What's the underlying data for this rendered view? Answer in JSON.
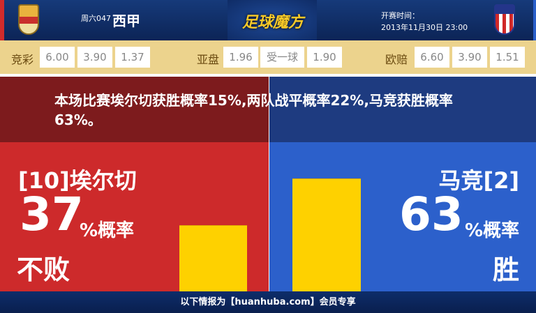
{
  "header": {
    "weekday_code": "周六047",
    "league": "西甲",
    "brand": "足球魔方",
    "kickoff_label": "开赛时间：",
    "kickoff_time": "2013年11月30日 23:00",
    "home_logo": "elche-crest",
    "away_logo": "atletico-madrid-crest"
  },
  "odds": {
    "jingcai": {
      "label": "竞彩",
      "values": [
        "6.00",
        "3.90",
        "1.37"
      ]
    },
    "yapan": {
      "label": "亚盘",
      "values": [
        "1.96",
        "受一球",
        "1.90"
      ]
    },
    "ouzhi": {
      "label": "欧赔",
      "values": [
        "6.60",
        "3.90",
        "1.51"
      ]
    }
  },
  "message": "本场比赛埃尔切获胜概率15%,两队战平概率22%,马竞获胜概率63%。",
  "home": {
    "team": "[10]埃尔切",
    "percent": 37,
    "percent_text": "37",
    "unit": "%概率",
    "outcome": "不败",
    "color": "#cd2a2b"
  },
  "away": {
    "team": "马竞[2]",
    "percent": 63,
    "percent_text": "63",
    "unit": "%概率",
    "outcome": "胜",
    "color": "#2c60cb"
  },
  "bar_color": "#fed100",
  "footer": "以下情报为【huanhuba.com】会员专享"
}
